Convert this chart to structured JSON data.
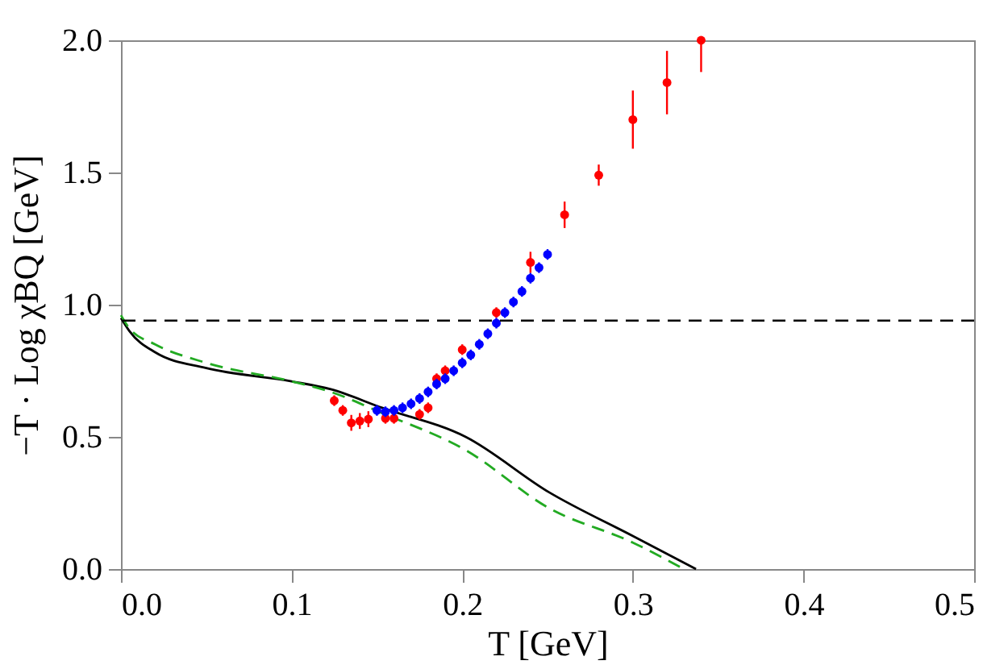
{
  "chart_data": {
    "type": "scatter",
    "xlabel": "T [GeV]",
    "ylabel": "−T · Log χBQ  [GeV]",
    "xlim": [
      0,
      0.5
    ],
    "xticks": [
      {
        "value": 0,
        "label": "0.0"
      },
      0.1,
      0.2,
      0.3,
      0.4,
      0.5
    ],
    "ylim": [
      0,
      2.0
    ],
    "yticks": [
      {
        "value": 0,
        "label": "0.0"
      },
      0.5,
      {
        "value": 1,
        "label": "1.0"
      },
      1.5,
      {
        "value": 2,
        "label": "2.0"
      }
    ],
    "grid": false,
    "marker": "circle",
    "ref_lines": [
      {
        "axis": "y",
        "value": 0.94,
        "color": "#000000",
        "line_style": "dashed"
      }
    ],
    "series": [
      {
        "type": "line",
        "color": "#000000",
        "line_style": "solid",
        "marker": "none",
        "x": [
          0,
          0.005,
          0.02,
          0.05,
          0.1,
          0.123,
          0.153,
          0.202,
          0.251,
          0.3,
          0.337
        ],
        "values": [
          0.95,
          0.9,
          0.82,
          0.76,
          0.71,
          0.68,
          0.61,
          0.5,
          0.29,
          0.125,
          0
        ]
      },
      {
        "type": "line",
        "color": "#22aa22",
        "line_style": "dashed",
        "marker": "none",
        "x": [
          0,
          0.005,
          0.02,
          0.05,
          0.1,
          0.123,
          0.153,
          0.202,
          0.251,
          0.3,
          0.33
        ],
        "values": [
          0.96,
          0.91,
          0.85,
          0.78,
          0.71,
          0.67,
          0.59,
          0.45,
          0.23,
          0.1,
          0
        ]
      },
      {
        "color": "#ff0000",
        "x": [
          0.125,
          0.13,
          0.135,
          0.14,
          0.145,
          0.155,
          0.16,
          0.175,
          0.18,
          0.185,
          0.19,
          0.2,
          0.22,
          0.24,
          0.26,
          0.28,
          0.3,
          0.32,
          0.34
        ],
        "values": [
          0.637,
          0.6,
          0.553,
          0.56,
          0.567,
          0.57,
          0.57,
          0.585,
          0.61,
          0.72,
          0.75,
          0.83,
          0.97,
          1.16,
          1.34,
          1.49,
          1.7,
          1.84,
          2.0
        ],
        "errors": [
          0.02,
          0.02,
          0.03,
          0.03,
          0.03,
          0.02,
          0.02,
          0.02,
          0.02,
          0.02,
          0.02,
          0.02,
          0.02,
          0.04,
          0.05,
          0.04,
          0.11,
          0.12,
          [
            1.88,
            2.0
          ]
        ]
      },
      {
        "color": "#0000ff",
        "x": [
          0.15,
          0.155,
          0.16,
          0.165,
          0.17,
          0.175,
          0.18,
          0.185,
          0.19,
          0.195,
          0.2,
          0.205,
          0.21,
          0.215,
          0.22,
          0.225,
          0.23,
          0.235,
          0.24,
          0.245,
          0.25
        ],
        "values": [
          0.6,
          0.595,
          0.6,
          0.61,
          0.625,
          0.645,
          0.67,
          0.7,
          0.72,
          0.75,
          0.78,
          0.81,
          0.85,
          0.89,
          0.93,
          0.97,
          1.01,
          1.05,
          1.1,
          1.14,
          1.19
        ],
        "errors": [
          0.02,
          0.02,
          0.02,
          0.02,
          0.02,
          0.02,
          0.02,
          0.02,
          0.02,
          0.02,
          0.02,
          0.02,
          0.02,
          0.02,
          0.02,
          0.02,
          0.02,
          0.02,
          0.02,
          0.02,
          0.02
        ]
      }
    ]
  }
}
